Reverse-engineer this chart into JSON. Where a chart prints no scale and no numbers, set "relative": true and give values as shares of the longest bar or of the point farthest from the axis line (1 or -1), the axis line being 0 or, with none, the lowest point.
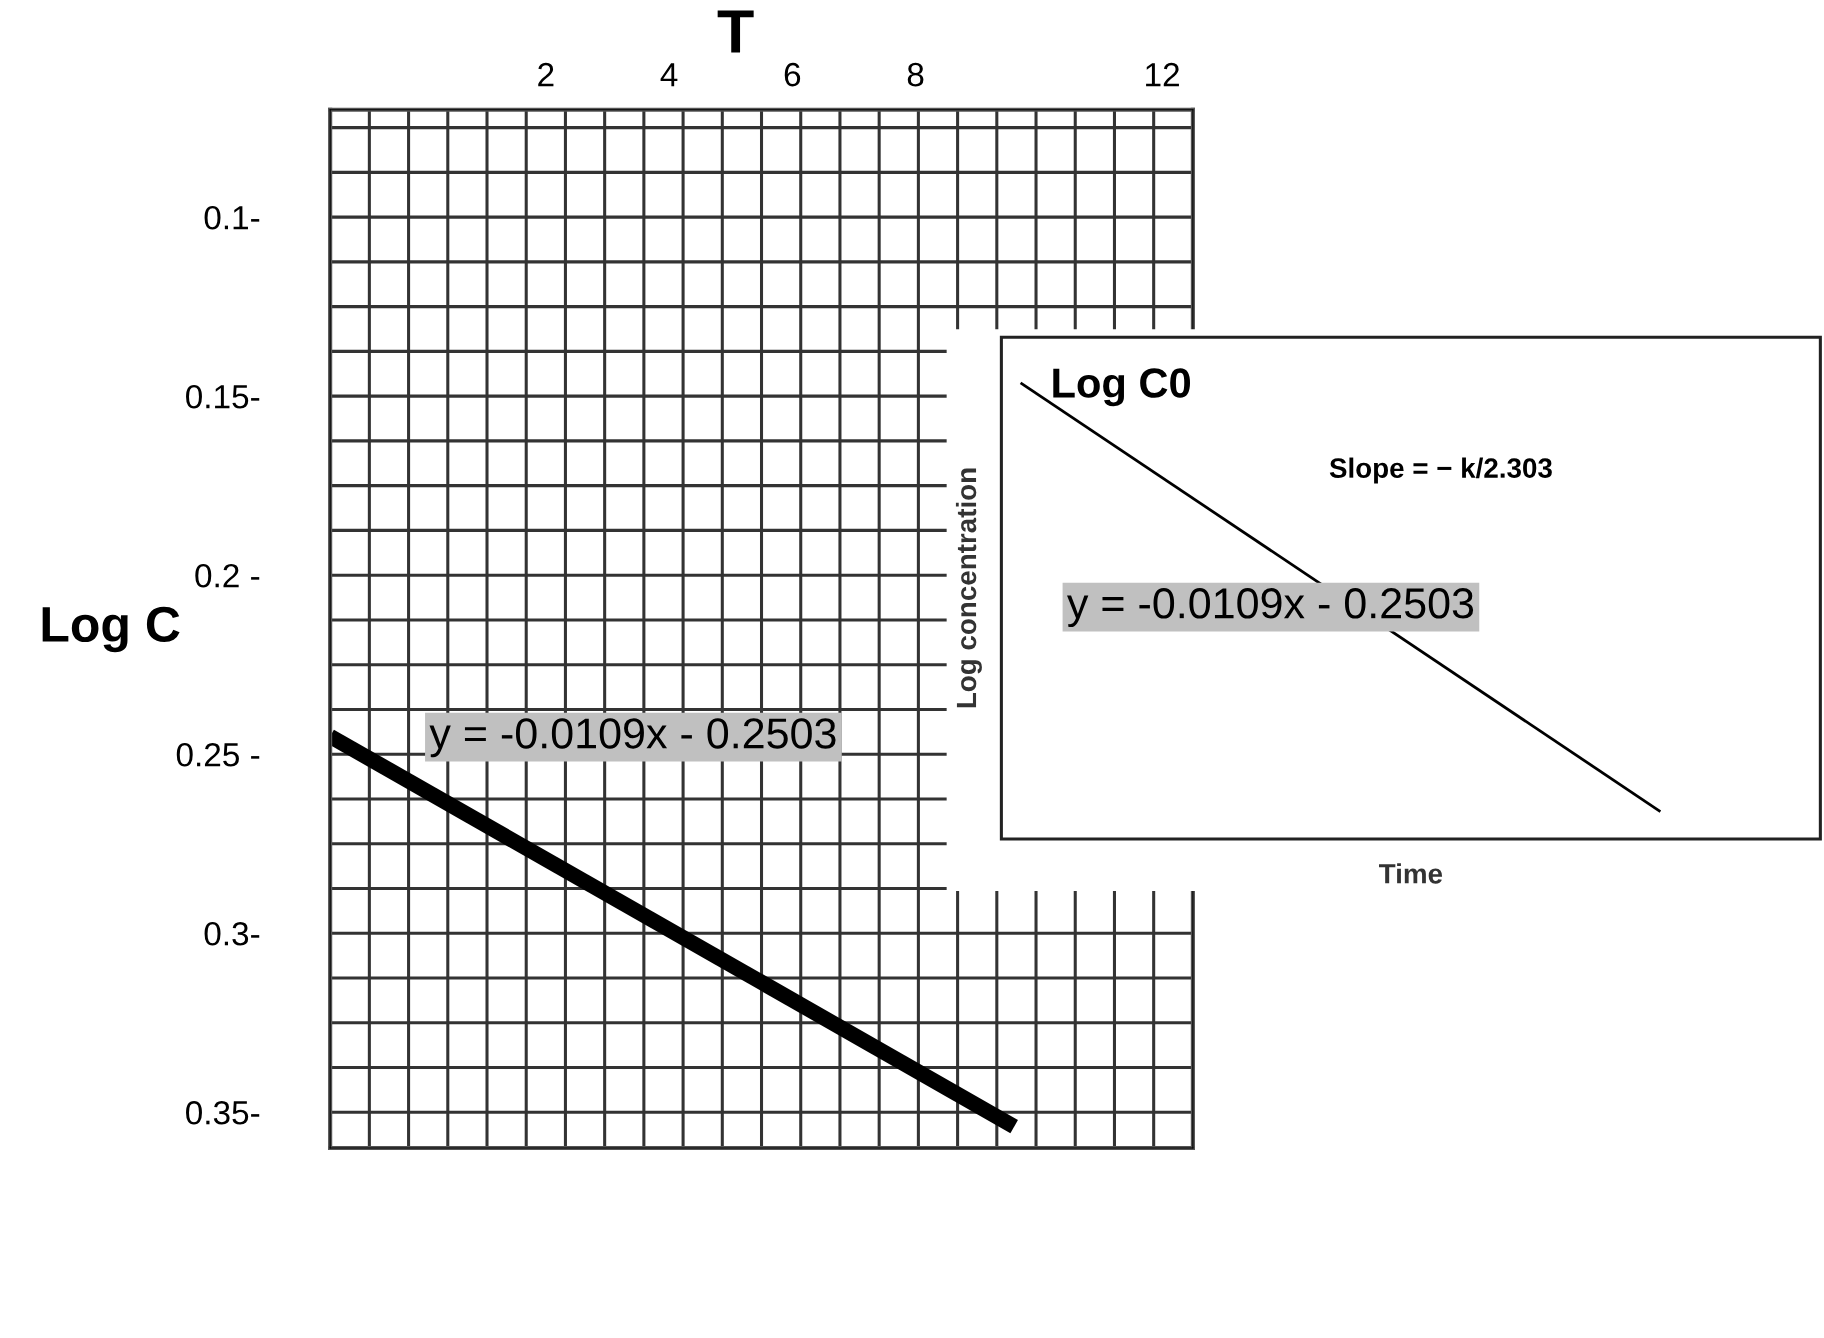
{
  "chart_data": [
    {
      "type": "line",
      "ylabel": "Log C",
      "xlabel": "T",
      "x": [
        -1.5,
        9.6
      ],
      "series": [
        {
          "color": "#000000",
          "values": [
            0.245,
            0.354
          ]
        }
      ],
      "xlim": [
        -1.5,
        12.5
      ],
      "xticks": [
        2,
        4,
        6,
        8,
        12
      ],
      "ylim": [
        0.36,
        0.07
      ],
      "yticks": [
        {
          "value": 0.075,
          "label": null
        },
        {
          "value": 0.0875,
          "label": null
        },
        {
          "value": 0.1,
          "label": "0.1-"
        },
        {
          "value": 0.1125,
          "label": null
        },
        {
          "value": 0.125,
          "label": null
        },
        {
          "value": 0.1375,
          "label": null
        },
        {
          "value": 0.15,
          "label": "0.15-"
        },
        {
          "value": 0.1625,
          "label": null
        },
        {
          "value": 0.175,
          "label": null
        },
        {
          "value": 0.1875,
          "label": null
        },
        {
          "value": 0.2,
          "label": "0.2 -"
        },
        {
          "value": 0.2125,
          "label": null
        },
        {
          "value": 0.225,
          "label": null
        },
        {
          "value": 0.2375,
          "label": null
        },
        {
          "value": 0.25,
          "label": "0.25 -"
        },
        {
          "value": 0.2625,
          "label": null
        },
        {
          "value": 0.275,
          "label": null
        },
        {
          "value": 0.2875,
          "label": null
        },
        {
          "value": 0.3,
          "label": "0.3-"
        },
        {
          "value": 0.3125,
          "label": null
        },
        {
          "value": 0.325,
          "label": null
        },
        {
          "value": 0.3375,
          "label": null
        },
        {
          "value": 0.35,
          "label": "0.35-"
        }
      ],
      "grid": true,
      "annotations": [
        "y = -0.0109x - 0.2503"
      ]
    },
    {
      "type": "line",
      "relative": true,
      "xlabel": "Time",
      "ylabel": "Log concentration",
      "categories": [
        null,
        null
      ],
      "series": [
        {
          "color": "#000000",
          "values": [
            1,
            0.06
          ]
        }
      ],
      "grid": false,
      "annotations": [
        "Log C0",
        "Slope = − k/2.303",
        "y = -0.0109x - 0.2503"
      ]
    }
  ]
}
